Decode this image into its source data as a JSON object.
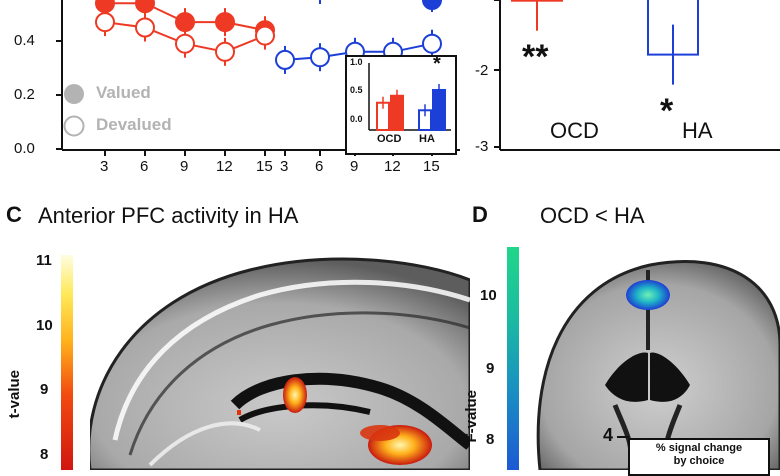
{
  "panel_a": {
    "y_ticks": [
      "0.4",
      "0.2",
      "0.0"
    ],
    "x_ticks": [
      "3",
      "6",
      "9",
      "12",
      "15",
      "3",
      "6",
      "9",
      "12",
      "15"
    ],
    "legend": [
      {
        "label": "Valued",
        "marker": "filled-circle"
      },
      {
        "label": "Devalued",
        "marker": "open-circle"
      }
    ],
    "colors": {
      "ocd": "#ee3a24",
      "ha": "#1c3fd8",
      "legend_gray": "#b3b3b3"
    }
  },
  "inset": {
    "y_ticks": [
      "1.0",
      "0.5",
      "0.0"
    ],
    "x_labels": [
      "OCD",
      "HA"
    ],
    "annotation": "*"
  },
  "panel_b": {
    "y_ticks": [
      "-2",
      "-3"
    ],
    "x_labels": [
      "OCD",
      "HA"
    ],
    "annotations": [
      "**",
      "*"
    ]
  },
  "panel_c": {
    "letter": "C",
    "title": "Anterior PFC activity in HA",
    "colorbar": {
      "label": "t-value",
      "ticks": [
        "11",
        "10",
        "9",
        "8"
      ]
    }
  },
  "panel_d": {
    "letter": "D",
    "title": "OCD < HA",
    "colorbar": {
      "label": "F-value",
      "ticks": [
        "10",
        "9",
        "8"
      ]
    },
    "inset_tick": "4",
    "inset_note_line1": "% signal change",
    "inset_note_line2": "by choice"
  },
  "chart_data": [
    {
      "type": "line",
      "x": [
        3,
        6,
        9,
        12,
        15
      ],
      "ylim": [
        0,
        0.55
      ],
      "series_ocd_valued": [
        0.54,
        0.54,
        0.47,
        0.47,
        0.44
      ],
      "series_ocd_devalued": [
        0.47,
        0.45,
        0.39,
        0.36,
        0.42
      ],
      "series_ha_devalued": [
        0.33,
        0.34,
        0.36,
        0.36,
        0.39
      ]
    },
    {
      "type": "bar",
      "categories": [
        "OCD",
        "HA"
      ],
      "values_devalued": [
        0.47,
        0.34
      ],
      "values_valued": [
        0.59,
        0.69
      ],
      "ylim": [
        0,
        1.0
      ]
    },
    {
      "type": "bar",
      "categories": [
        "OCD",
        "HA"
      ],
      "values": [
        -1.1,
        -1.8
      ],
      "ylim": [
        -3,
        -1
      ]
    }
  ]
}
